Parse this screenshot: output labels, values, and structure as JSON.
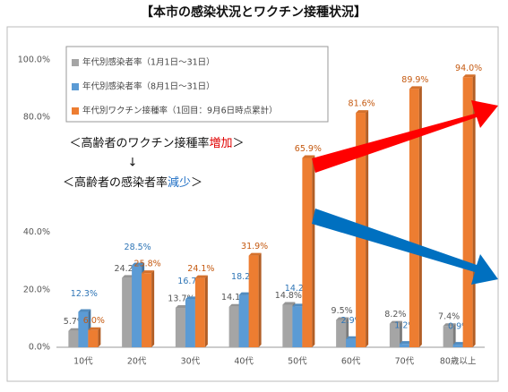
{
  "chart_data": {
    "type": "bar",
    "title": "【本市の感染状況とワクチン接種状況】",
    "categories": [
      "10代",
      "20代",
      "30代",
      "40代",
      "50代",
      "60代",
      "70代",
      "80歳以上"
    ],
    "series": [
      {
        "name": "年代別感染者率（1月1日～31日）",
        "color": "#a5a5a5",
        "values": [
          5.7,
          24.2,
          13.7,
          14.1,
          14.8,
          9.5,
          8.2,
          7.4
        ],
        "value_labels": [
          "5.7%",
          "24.2%",
          "13.7%",
          "14.1%",
          "14.8%",
          "9.5%",
          "8.2%",
          "7.4%"
        ]
      },
      {
        "name": "年代別感染者率（8月1日～31日）",
        "color": "#5b9bd5",
        "values": [
          12.3,
          28.5,
          16.7,
          18.2,
          14.2,
          2.9,
          1.2,
          0.9
        ],
        "value_labels": [
          "12.3%",
          "28.5%",
          "16.7%",
          "18.2%",
          "14.2%",
          "2.9%",
          "1.2%",
          "0.9%"
        ]
      },
      {
        "name": "年代別ワクチン接種率（1回目：9月6日時点累計）",
        "color": "#ed7d31",
        "values": [
          6.0,
          25.8,
          24.1,
          31.9,
          65.9,
          81.6,
          89.9,
          94.0
        ],
        "value_labels": [
          "6.0%",
          "25.8%",
          "24.1%",
          "31.9%",
          "65.9%",
          "81.6%",
          "89.9%",
          "94.0%"
        ]
      }
    ],
    "ylim": [
      0,
      100
    ],
    "yticks": [
      {
        "value": 0,
        "label": "0.0%"
      },
      {
        "value": 20,
        "label": "20.0%"
      },
      {
        "value": 40,
        "label": "40.0%"
      },
      {
        "value": 80,
        "label": "80.0%"
      },
      {
        "value": 100,
        "label": "100.0%"
      }
    ],
    "annotation_1": [
      "＜高齢者のワクチン接種率",
      "増加",
      "＞"
    ],
    "annotation_arrow": "↓",
    "annotation_2": [
      "＜高齢者の感染者率",
      "減少",
      "＞"
    ]
  }
}
